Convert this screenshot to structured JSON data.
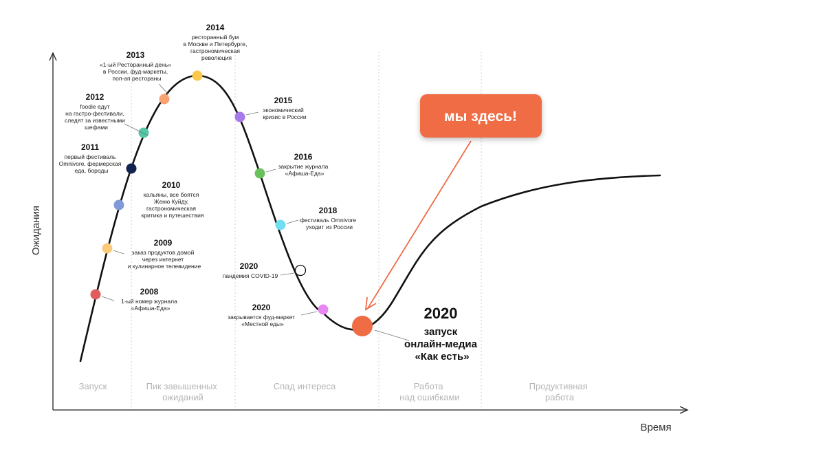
{
  "axes": {
    "x_label": "Время",
    "y_label": "Ожидания"
  },
  "phases": [
    {
      "id": "launch",
      "lines": [
        "Запуск"
      ]
    },
    {
      "id": "peak",
      "lines": [
        "Пик завышенных",
        "ожиданий"
      ]
    },
    {
      "id": "decline",
      "lines": [
        "Спад интереса"
      ]
    },
    {
      "id": "work",
      "lines": [
        "Работа",
        "над ошибками"
      ]
    },
    {
      "id": "productive",
      "lines": [
        "Продуктивная",
        "работа"
      ]
    }
  ],
  "events": [
    {
      "year": "2008",
      "color": "#e15c5c",
      "desc": [
        "1-ый номер журнала",
        "«Афиша-Еда»"
      ]
    },
    {
      "year": "2009",
      "color": "#fbc97a",
      "desc": [
        "заказ продуктов домой",
        "через интернет",
        "и кулинарное телевидение"
      ]
    },
    {
      "year": "2010",
      "color": "#7f9ad6",
      "desc": [
        "кальяны, все боятся",
        "Женю Куйду,",
        "гастрономическая",
        "критика и путешествия"
      ]
    },
    {
      "year": "2011",
      "color": "#13234f",
      "desc": [
        "первый фестиваль",
        "Omnivore, фермерская",
        "еда, бороды"
      ]
    },
    {
      "year": "2012",
      "color": "#54c7a5",
      "desc": [
        "foodie едут",
        "на гастро-фестивали,",
        "следят за известными",
        "шефами"
      ]
    },
    {
      "year": "2013",
      "color": "#f8a276",
      "desc": [
        "«1-ый Ресторанный день»",
        "в России, фуд-маркеты,",
        "поп-ап рестораны"
      ]
    },
    {
      "year": "2014",
      "color": "#fbc94c",
      "desc": [
        "ресторанный бум",
        "в Москве и Петербурге,",
        "гастрономическая",
        "революция"
      ]
    },
    {
      "year": "2015",
      "color": "#a77ae9",
      "desc": [
        "экономический",
        "кризис в России"
      ]
    },
    {
      "year": "2016",
      "color": "#69c05c",
      "desc": [
        "закрытие журнала",
        "«Афиша-Еда»"
      ]
    },
    {
      "year": "2018",
      "color": "#72dff0",
      "desc": [
        "фестиваль Omnivore",
        "уходит из России"
      ]
    },
    {
      "year": "2020",
      "color": "#ffffff",
      "desc": [
        "пандемия COVID-19"
      ]
    },
    {
      "year": "2020",
      "color": "#e887f2",
      "desc": [
        "закрывается фуд-маркет",
        "«Местной еды»"
      ]
    }
  ],
  "highlight": {
    "year": "2020",
    "color": "#ef6c45",
    "desc": [
      "запуск",
      "онлайн-медиа",
      "«Как есть»"
    ]
  },
  "callout": {
    "text": "мы здесь!",
    "bg_color": "#ef6c45",
    "arrow_color": "#ef6c45"
  }
}
